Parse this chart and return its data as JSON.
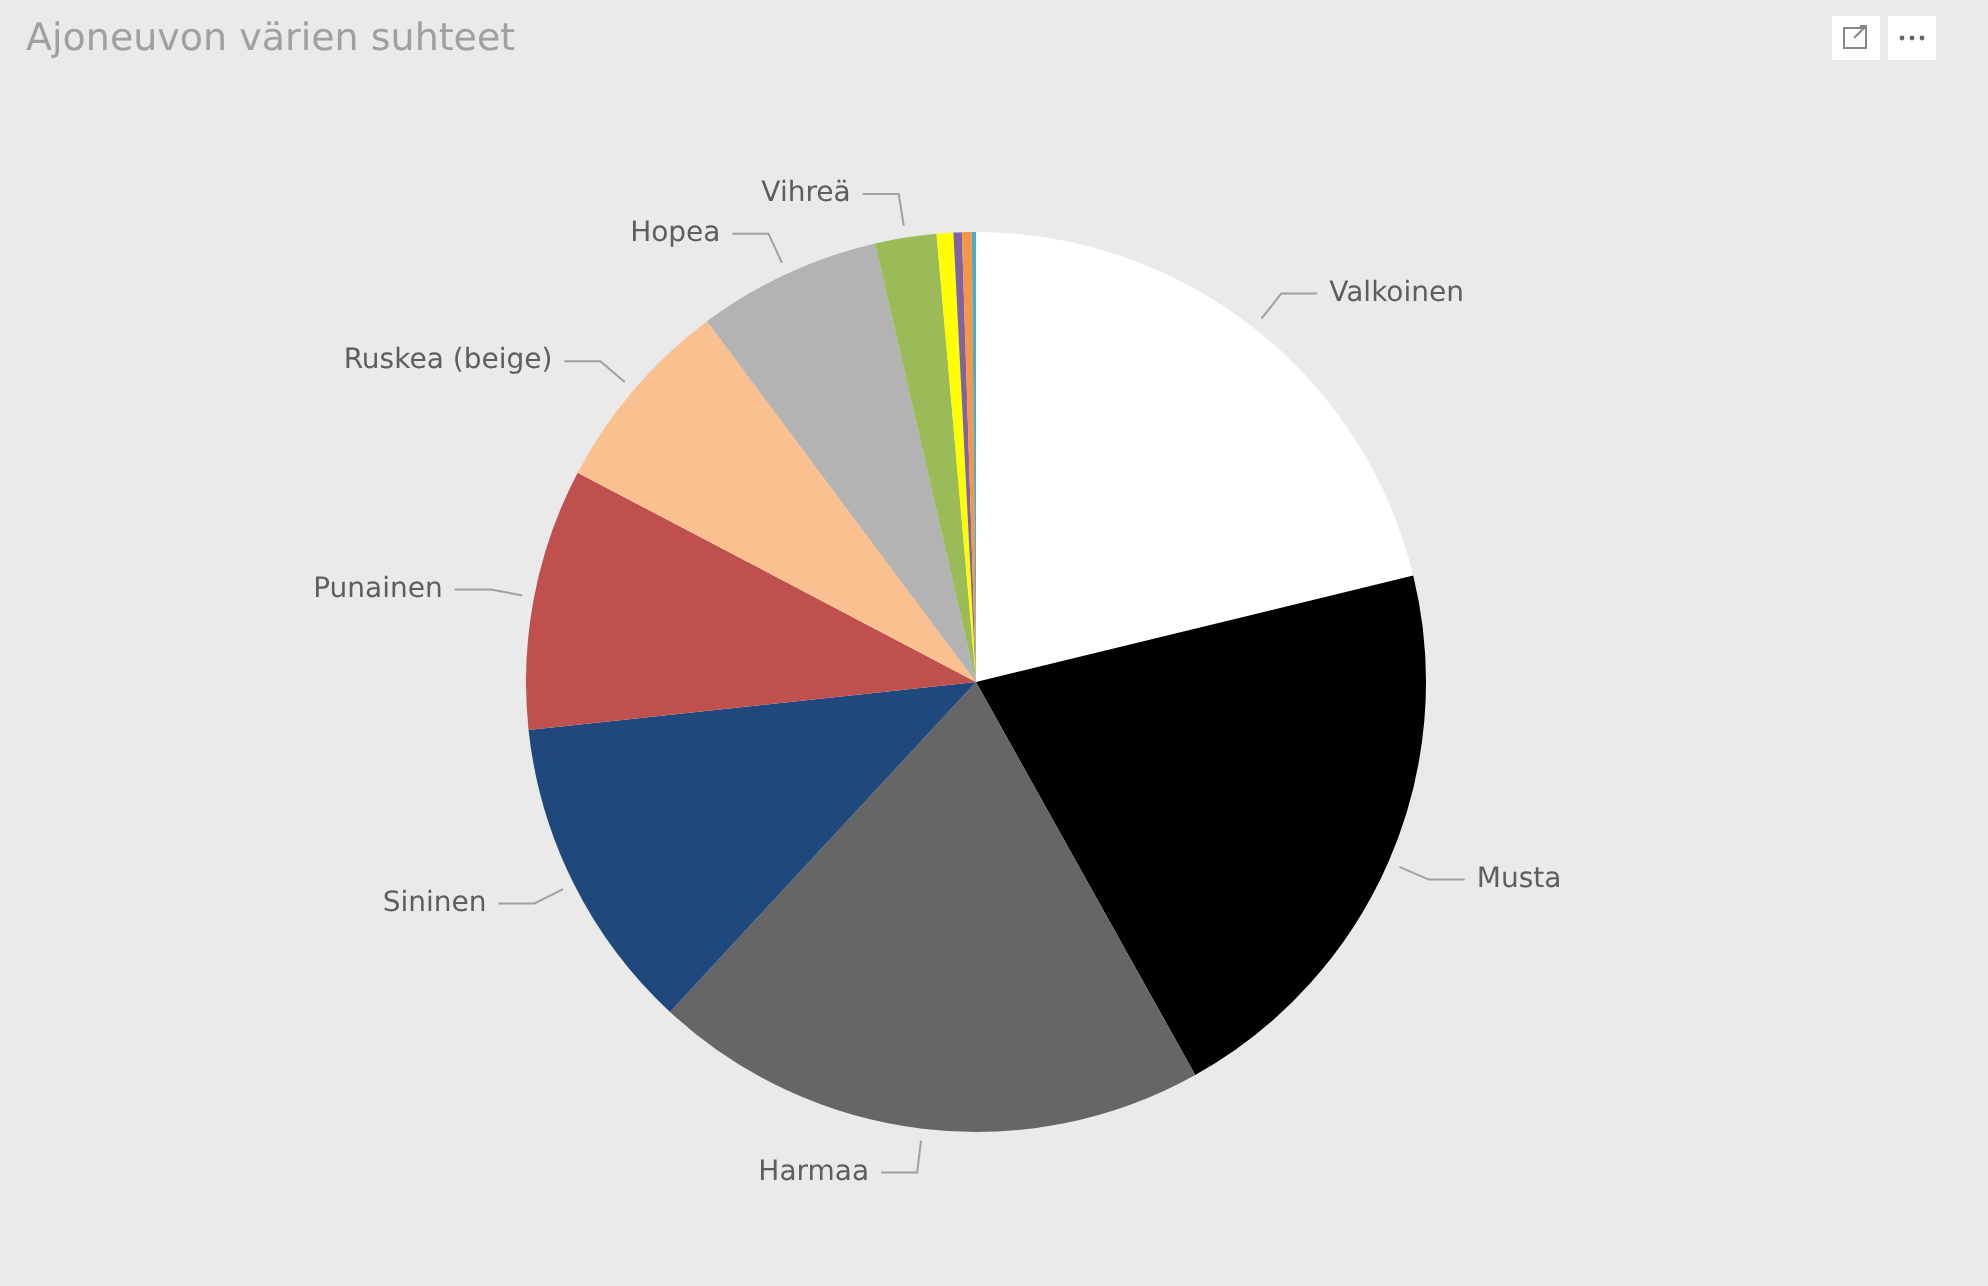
{
  "chart_data": {
    "type": "pie",
    "title": "Ajoneuvon värien suhteet",
    "categories": [
      "Valkoinen",
      "Musta",
      "Harmaa",
      "Sininen",
      "Punainen",
      "Ruskea (beige)",
      "Hopea",
      "Vihreä",
      null,
      null,
      null,
      null
    ],
    "values": [
      21.2,
      20.7,
      20.0,
      11.4,
      9.4,
      7.1,
      6.6,
      2.2,
      0.6,
      0.3,
      0.35,
      0.15
    ],
    "colors": [
      "#ffffff",
      "#000000",
      "#666666",
      "#1f497d",
      "#c0504d",
      "#fac08f",
      "#b3b3b3",
      "#9bbb59",
      "#ffff00",
      "#8064a2",
      "#f79646",
      "#4bacc6"
    ],
    "legend": false
  }
}
